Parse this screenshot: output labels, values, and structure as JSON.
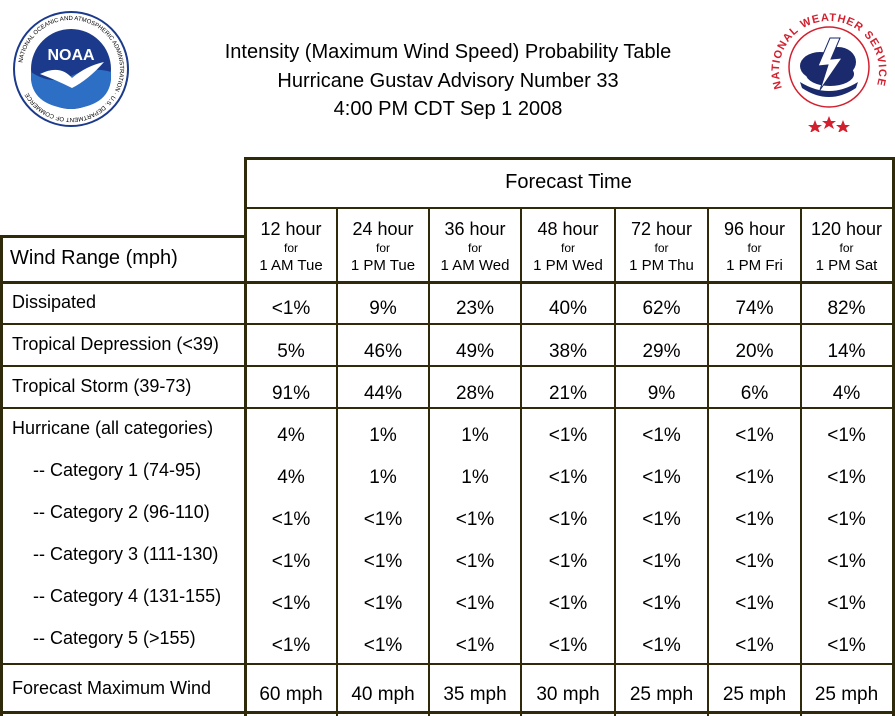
{
  "header": {
    "title_lines": [
      "Intensity (Maximum Wind Speed) Probability Table",
      "Hurricane Gustav Advisory Number 33",
      "4:00 PM CDT Sep 1 2008"
    ],
    "noaa_logo": {
      "label": "NOAA",
      "ring_text": "NATIONAL OCEANIC AND ATMOSPHERIC ADMINISTRATION · U.S. DEPARTMENT OF COMMERCE"
    },
    "nws_logo": {
      "ring_text": "NATIONAL WEATHER SERVICE"
    }
  },
  "table": {
    "forecast_time_label": "Forecast Time",
    "wind_range_label": "Wind Range (mph)",
    "for_label": "for",
    "columns": [
      {
        "hour": "12 hour",
        "time": "1 AM Tue"
      },
      {
        "hour": "24 hour",
        "time": "1 PM Tue"
      },
      {
        "hour": "36 hour",
        "time": "1 AM Wed"
      },
      {
        "hour": "48 hour",
        "time": "1 PM Wed"
      },
      {
        "hour": "72 hour",
        "time": "1 PM Thu"
      },
      {
        "hour": "96 hour",
        "time": "1 PM Fri"
      },
      {
        "hour": "120 hour",
        "time": "1 PM Sat"
      }
    ],
    "rows": [
      {
        "label": "Dissipated",
        "values": [
          "<1%",
          "9%",
          "23%",
          "40%",
          "62%",
          "74%",
          "82%"
        ]
      },
      {
        "label": "Tropical Depression (<39)",
        "values": [
          "5%",
          "46%",
          "49%",
          "38%",
          "29%",
          "20%",
          "14%"
        ]
      },
      {
        "label": "Tropical Storm (39-73)",
        "values": [
          "91%",
          "44%",
          "28%",
          "21%",
          "9%",
          "6%",
          "4%"
        ]
      },
      {
        "label": "Hurricane (all categories)",
        "values": [
          "4%",
          "1%",
          "1%",
          "<1%",
          "<1%",
          "<1%",
          "<1%"
        ]
      },
      {
        "label": "-- Category 1 (74-95)",
        "values": [
          "4%",
          "1%",
          "1%",
          "<1%",
          "<1%",
          "<1%",
          "<1%"
        ]
      },
      {
        "label": "-- Category 2 (96-110)",
        "values": [
          "<1%",
          "<1%",
          "<1%",
          "<1%",
          "<1%",
          "<1%",
          "<1%"
        ]
      },
      {
        "label": "-- Category 3 (111-130)",
        "values": [
          "<1%",
          "<1%",
          "<1%",
          "<1%",
          "<1%",
          "<1%",
          "<1%"
        ]
      },
      {
        "label": "-- Category 4 (131-155)",
        "values": [
          "<1%",
          "<1%",
          "<1%",
          "<1%",
          "<1%",
          "<1%",
          "<1%"
        ]
      },
      {
        "label": "-- Category 5 (>155)",
        "values": [
          "<1%",
          "<1%",
          "<1%",
          "<1%",
          "<1%",
          "<1%",
          "<1%"
        ]
      }
    ],
    "max_wind_row": {
      "label": "Forecast Maximum Wind",
      "values": [
        "60 mph",
        "40 mph",
        "35 mph",
        "30 mph",
        "25 mph",
        "25 mph",
        "25 mph"
      ]
    }
  },
  "colors": {
    "border": "#2e2a0a",
    "noaa_blue": "#1b3a8c",
    "nws_red": "#d3202f",
    "nws_navy": "#1a2a6c"
  }
}
